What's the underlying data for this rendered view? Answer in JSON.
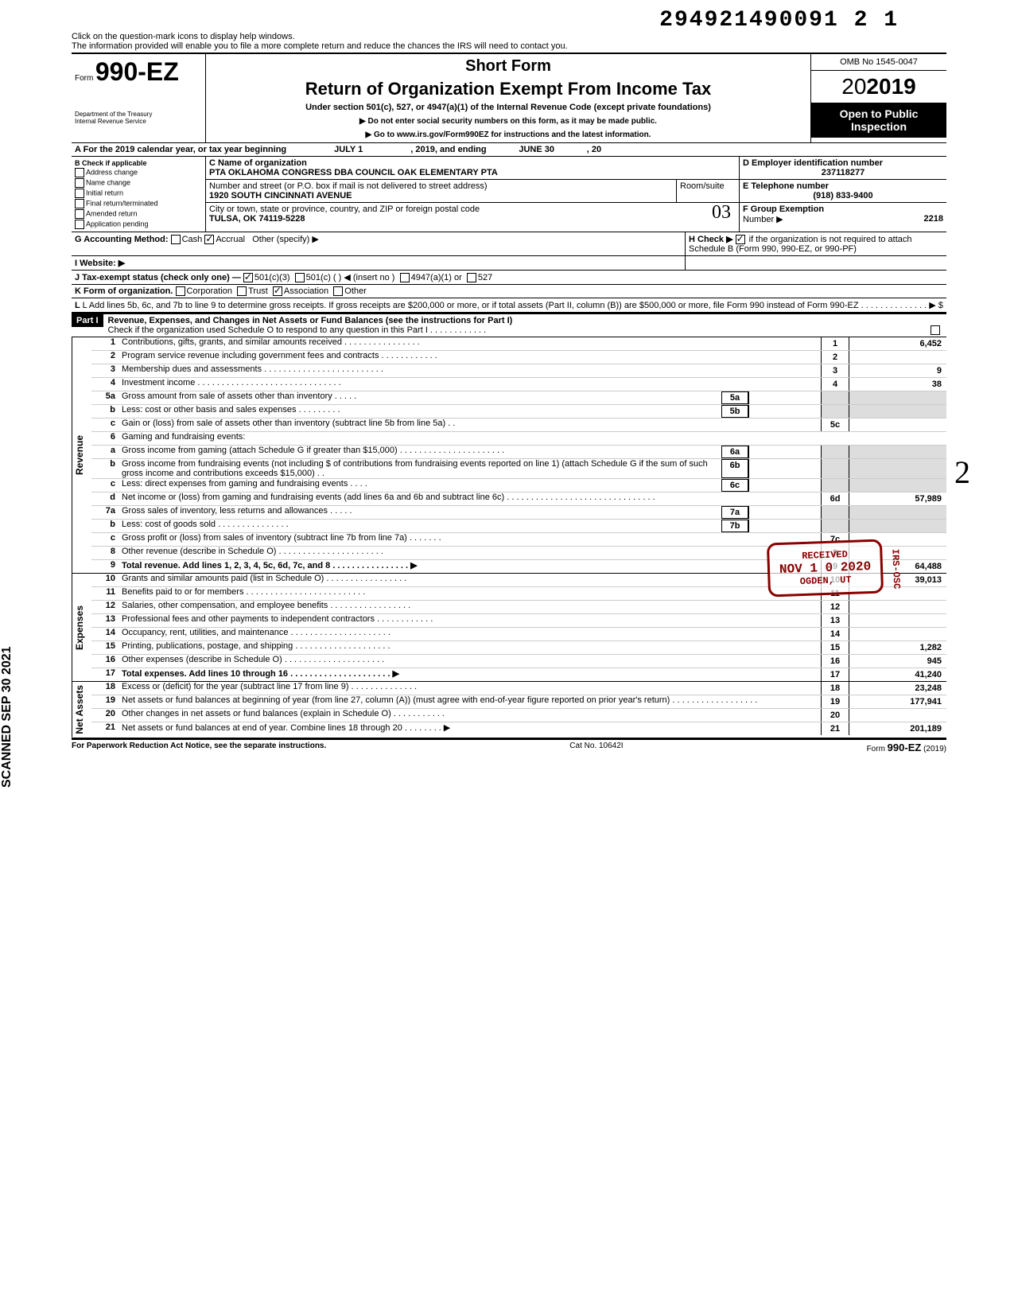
{
  "topNumber": "294921490091 2  1",
  "helpLine1": "Click on the question-mark icons to display help windows.",
  "helpLine2": "The information provided will enable you to file a more complete return and reduce the chances the IRS will need to contact you.",
  "formPrefix": "Form",
  "formNumber": "990-EZ",
  "dept": "Department of the Treasury\nInternal Revenue Service",
  "shortForm": "Short Form",
  "mainTitle": "Return of Organization Exempt From Income Tax",
  "subTitle": "Under section 501(c), 527, or 4947(a)(1) of the Internal Revenue Code (except private foundations)",
  "ssnWarn": "▶ Do not enter social security numbers on this form, as it may be made public.",
  "goTo": "▶ Go to www.irs.gov/Form990EZ for instructions and the latest information.",
  "omb": "OMB No 1545-0047",
  "year": "2019",
  "openPublic1": "Open to Public",
  "openPublic2": "Inspection",
  "periodA": "A For the 2019 calendar year, or tax year beginning",
  "periodBegin": "JULY 1",
  "periodMid": ", 2019, and ending",
  "periodEnd": "JUNE 30",
  "periodYear": ", 20",
  "checkB": "B Check if applicable",
  "checks": [
    "Address change",
    "Name change",
    "Initial return",
    "Final return/terminated",
    "Amended return",
    "Application pending"
  ],
  "nameLabel": "C Name of organization",
  "orgName": "PTA OKLAHOMA CONGRESS DBA COUNCIL OAK ELEMENTARY PTA",
  "streetLabel": "Number and street (or P.O. box if mail is not delivered to street address)",
  "roomLabel": "Room/suite",
  "street": "1920 SOUTH CINCINNATI AVENUE",
  "cityLabel": "City or town, state or province, country, and ZIP or foreign postal code",
  "city": "TULSA, OK 74119-5228",
  "einLabel": "D Employer identification number",
  "ein": "237118277",
  "phoneLabel": "E Telephone number",
  "phone": "(918) 833-9400",
  "groupLabel": "F Group Exemption",
  "groupNum": "Number ▶",
  "groupVal": "2218",
  "acctG": "G Accounting Method:",
  "cash": "Cash",
  "accrual": "Accrual",
  "otherSpec": "Other (specify) ▶",
  "websiteI": "I Website: ▶",
  "hCheck": "H Check ▶",
  "hText": "if the organization is not required to attach Schedule B (Form 990, 990-EZ, or 990-PF)",
  "taxJ": "J Tax-exempt status (check only one) —",
  "j1": "501(c)(3)",
  "j2": "501(c) (",
  "j2b": ") ◀ (insert no )",
  "j3": "4947(a)(1) or",
  "j4": "527",
  "formK": "K Form of organization.",
  "corp": "Corporation",
  "trust": "Trust",
  "assoc": "Association",
  "otherK": "Other",
  "lineL": "L Add lines 5b, 6c, and 7b to line 9 to determine gross receipts. If gross receipts are $200,000 or more, or if total assets (Part II, column (B)) are $500,000 or more, file Form 990 instead of Form 990-EZ . . . . . . . . . . . . . . ▶  $",
  "partI": "Part I",
  "partITitle": "Revenue, Expenses, and Changes in Net Assets or Fund Balances (see the instructions for Part I)",
  "partICheck": "Check if the organization used Schedule O to respond to any question in this Part I . . . . . . . . . . . .",
  "revLabel": "Revenue",
  "expLabel": "Expenses",
  "naLabel": "Net Assets",
  "lines": {
    "l1": {
      "n": "1",
      "d": "Contributions, gifts, grants, and similar amounts received . . . . . . . . . . . . . . . .",
      "box": "1",
      "v": "6,452"
    },
    "l2": {
      "n": "2",
      "d": "Program service revenue including government fees and contracts . . . . . . . . . . . .",
      "box": "2",
      "v": ""
    },
    "l3": {
      "n": "3",
      "d": "Membership dues and assessments . . . . . . . . . . . . . . . . . . . . . . . . .",
      "box": "3",
      "v": "9"
    },
    "l4": {
      "n": "4",
      "d": "Investment income . . . . . . . . . . . . . . . . . . . . . . . . . . . . . .",
      "box": "4",
      "v": "38"
    },
    "l5a": {
      "n": "5a",
      "d": "Gross amount from sale of assets other than inventory . . . . .",
      "ib": "5a"
    },
    "l5b": {
      "n": "b",
      "d": "Less: cost or other basis and sales expenses . . . . . . . . .",
      "ib": "5b"
    },
    "l5c": {
      "n": "c",
      "d": "Gain or (loss) from sale of assets other than inventory (subtract line 5b from line 5a) . .",
      "box": "5c",
      "v": ""
    },
    "l6": {
      "n": "6",
      "d": "Gaming and fundraising events:"
    },
    "l6a": {
      "n": "a",
      "d": "Gross income from gaming (attach Schedule G if greater than $15,000) . . . . . . . . . . . . . . . . . . . . . .",
      "ib": "6a"
    },
    "l6b": {
      "n": "b",
      "d": "Gross income from fundraising events (not including  $                    of contributions from fundraising events reported on line 1) (attach Schedule G if the sum of such gross income and contributions exceeds $15,000) . .",
      "ib": "6b"
    },
    "l6c": {
      "n": "c",
      "d": "Less: direct expenses from gaming and fundraising events . . . .",
      "ib": "6c"
    },
    "l6d": {
      "n": "d",
      "d": "Net income or (loss) from gaming and fundraising events (add lines 6a and 6b and subtract line 6c) . . . . . . . . . . . . . . . . . . . . . . . . . . . . . . .",
      "box": "6d",
      "v": "57,989"
    },
    "l7a": {
      "n": "7a",
      "d": "Gross sales of inventory, less returns and allowances . . . . .",
      "ib": "7a"
    },
    "l7b": {
      "n": "b",
      "d": "Less: cost of goods sold . . . . . . . . . . . . . . .",
      "ib": "7b"
    },
    "l7c": {
      "n": "c",
      "d": "Gross profit or (loss) from sales of inventory (subtract line 7b from line 7a) . . . . . . .",
      "box": "7c",
      "v": ""
    },
    "l8": {
      "n": "8",
      "d": "Other revenue (describe in Schedule O) . . . . . . . . . . . . . . . . . . . . . .",
      "box": "8",
      "v": ""
    },
    "l9": {
      "n": "9",
      "d": "Total revenue. Add lines 1, 2, 3, 4, 5c, 6d, 7c, and 8 . . . . . . . . . . . . . . . . ▶",
      "box": "9",
      "v": "64,488",
      "bold": true
    },
    "l10": {
      "n": "10",
      "d": "Grants and similar amounts paid (list in Schedule O) . . . . . . . . . . . . . . . . .",
      "box": "10",
      "v": "39,013"
    },
    "l11": {
      "n": "11",
      "d": "Benefits paid to or for members . . . . . . . . . . . . . . . . . . . . . . . . .",
      "box": "11",
      "v": ""
    },
    "l12": {
      "n": "12",
      "d": "Salaries, other compensation, and employee benefits . . . . . . . . . . . . . . . . .",
      "box": "12",
      "v": ""
    },
    "l13": {
      "n": "13",
      "d": "Professional fees and other payments to independent contractors . . . . . . . . . . . .",
      "box": "13",
      "v": ""
    },
    "l14": {
      "n": "14",
      "d": "Occupancy, rent, utilities, and maintenance . . . . . . . . . . . . . . . . . . . . .",
      "box": "14",
      "v": ""
    },
    "l15": {
      "n": "15",
      "d": "Printing, publications, postage, and shipping . . . . . . . . . . . . . . . . . . . .",
      "box": "15",
      "v": "1,282"
    },
    "l16": {
      "n": "16",
      "d": "Other expenses (describe in Schedule O) . . . . . . . . . . . . . . . . . . . . .",
      "box": "16",
      "v": "945"
    },
    "l17": {
      "n": "17",
      "d": "Total expenses. Add lines 10 through 16 . . . . . . . . . . . . . . . . . . . . . ▶",
      "box": "17",
      "v": "41,240",
      "bold": true
    },
    "l18": {
      "n": "18",
      "d": "Excess or (deficit) for the year (subtract line 17 from line 9) . . . . . . . . . . . . . .",
      "box": "18",
      "v": "23,248"
    },
    "l19": {
      "n": "19",
      "d": "Net assets or fund balances at beginning of year (from line 27, column (A)) (must agree with end-of-year figure reported on prior year's return) . . . . . . . . . . . . . . . . . .",
      "box": "19",
      "v": "177,941"
    },
    "l20": {
      "n": "20",
      "d": "Other changes in net assets or fund balances (explain in Schedule O) . . . . . . . . . . .",
      "box": "20",
      "v": ""
    },
    "l21": {
      "n": "21",
      "d": "Net assets or fund balances at end of year. Combine lines 18 through 20 . . . . . . . . ▶",
      "box": "21",
      "v": "201,189"
    }
  },
  "stampReceived": "RECEIVED",
  "stampDate": "NOV 1 0 2020",
  "stampOgden": "OGDEN, UT",
  "stampIRS": "IRS-OSC",
  "scanStamp": "SCANNED SEP 30 2021",
  "footerLeft": "For Paperwork Reduction Act Notice, see the separate instructions.",
  "footerMid": "Cat No. 10642I",
  "footerRight": "Form 990-EZ (2019)",
  "handNote": "2",
  "hand03": "03"
}
